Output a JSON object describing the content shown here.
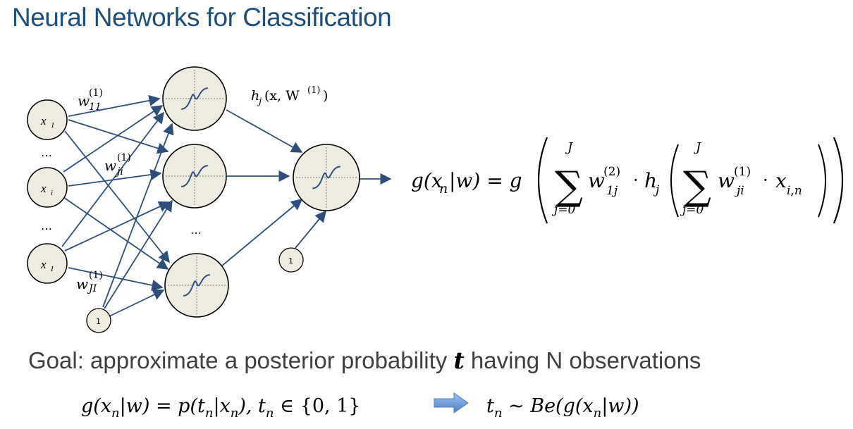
{
  "title": "Neural Networks for Classification",
  "network": {
    "inputs": [
      {
        "label": "x",
        "sub": "1"
      },
      {
        "label": "x",
        "sub": "i"
      },
      {
        "label": "x",
        "sub": "I"
      }
    ],
    "bias_label": "1",
    "ellipsis": "…",
    "weight_labels": {
      "w11": {
        "base": "w",
        "sub": "11",
        "sup": "(1)"
      },
      "wji": {
        "base": "w",
        "sub": "ji",
        "sup": "(1)"
      },
      "wJI": {
        "base": "w",
        "sub": "JI",
        "sup": "(1)"
      }
    },
    "hidden_output_label": {
      "h": "h",
      "sub": "j",
      "args": "(x, W",
      "sup": "(1)",
      "close": ")"
    }
  },
  "formula": {
    "lhs": "g(x",
    "lhs_sub": "n",
    "lhs_rest": "|w) = g",
    "sum_top": "J",
    "sum_bottom": "j=0",
    "w2": "w",
    "w2_sub": "1j",
    "w2_sup": "(2)",
    "dot": "·",
    "h": "h",
    "h_sub": "j",
    "w1": "w",
    "w1_sub": "ji",
    "w1_sup": "(1)",
    "x": "x",
    "x_sub": "i,n"
  },
  "goal": {
    "text_before": "Goal: approximate a posterior probability ",
    "variable": "t",
    "text_after": " having N observations"
  },
  "bottom_formula": {
    "left": "g(x",
    "left_sub": "n",
    "left_rest": "|w) = p(t",
    "left_sub2": "n",
    "left_rest2": "|x",
    "left_sub3": "n",
    "left_rest3": "),  t",
    "left_sub4": "n",
    "left_rest4": " ∈ {0, 1}",
    "right": "t",
    "right_sub": "n",
    "right_rest": " ~ Be(g(x",
    "right_sub2": "n",
    "right_rest2": "|w))"
  },
  "colors": {
    "arrow": "#2e4f7a",
    "node_fill": "#eeece1",
    "node_stroke": "#000000",
    "title": "#1f4e79",
    "implies_arrow": "#6a9ad6"
  }
}
